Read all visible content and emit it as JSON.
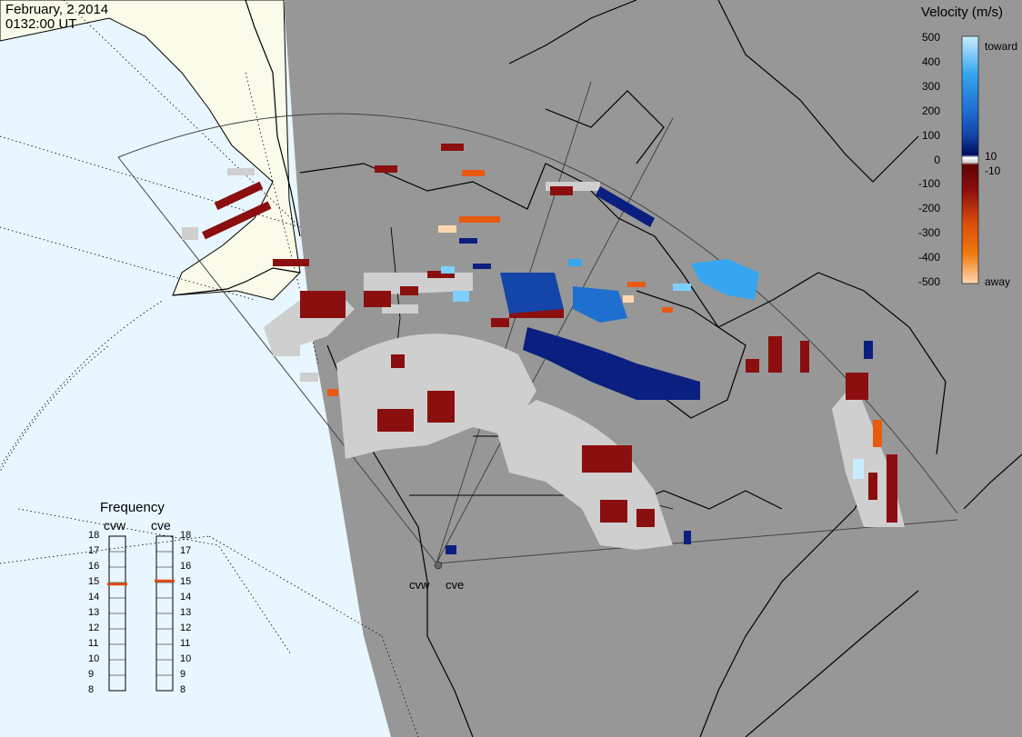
{
  "header": {
    "date": "February, 2 2014",
    "time": "0132:00 UT"
  },
  "colors": {
    "land": "#fbfbea",
    "ocean": "#e8f6ff",
    "night": "#979797",
    "coast": "#000000",
    "ground_scatter": "#cfcfcf"
  },
  "velocity_scale": {
    "title": "Velocity (m/s)",
    "ticks": [
      "500",
      "400",
      "300",
      "200",
      "100",
      "0",
      "-100",
      "-200",
      "-300",
      "-400",
      "-500"
    ],
    "inner_ticks": [
      "10",
      "-10"
    ],
    "toward_label": "toward",
    "away_label": "away",
    "colors_toward": [
      "#c8ecff",
      "#7ccfff",
      "#37a6f0",
      "#1f6fd0",
      "#1445a8",
      "#0a1f80",
      "#000c60"
    ],
    "colors_away": [
      "#600000",
      "#8b0f0f",
      "#b22a10",
      "#d94a0a",
      "#f07a10",
      "#ffaa55",
      "#ffd7b0"
    ]
  },
  "frequency_panel": {
    "title": "Frequency",
    "radars": [
      {
        "name": "cvw",
        "freq_mhz": 14.9
      },
      {
        "name": "cve",
        "freq_mhz": 15.1
      }
    ],
    "ticks": [
      "18",
      "17",
      "16",
      "15",
      "14",
      "13",
      "12",
      "11",
      "10",
      "9",
      "8"
    ],
    "line_color": "#e04a10"
  },
  "radar_sites": [
    {
      "name": "cvw"
    },
    {
      "name": "cve"
    }
  ]
}
